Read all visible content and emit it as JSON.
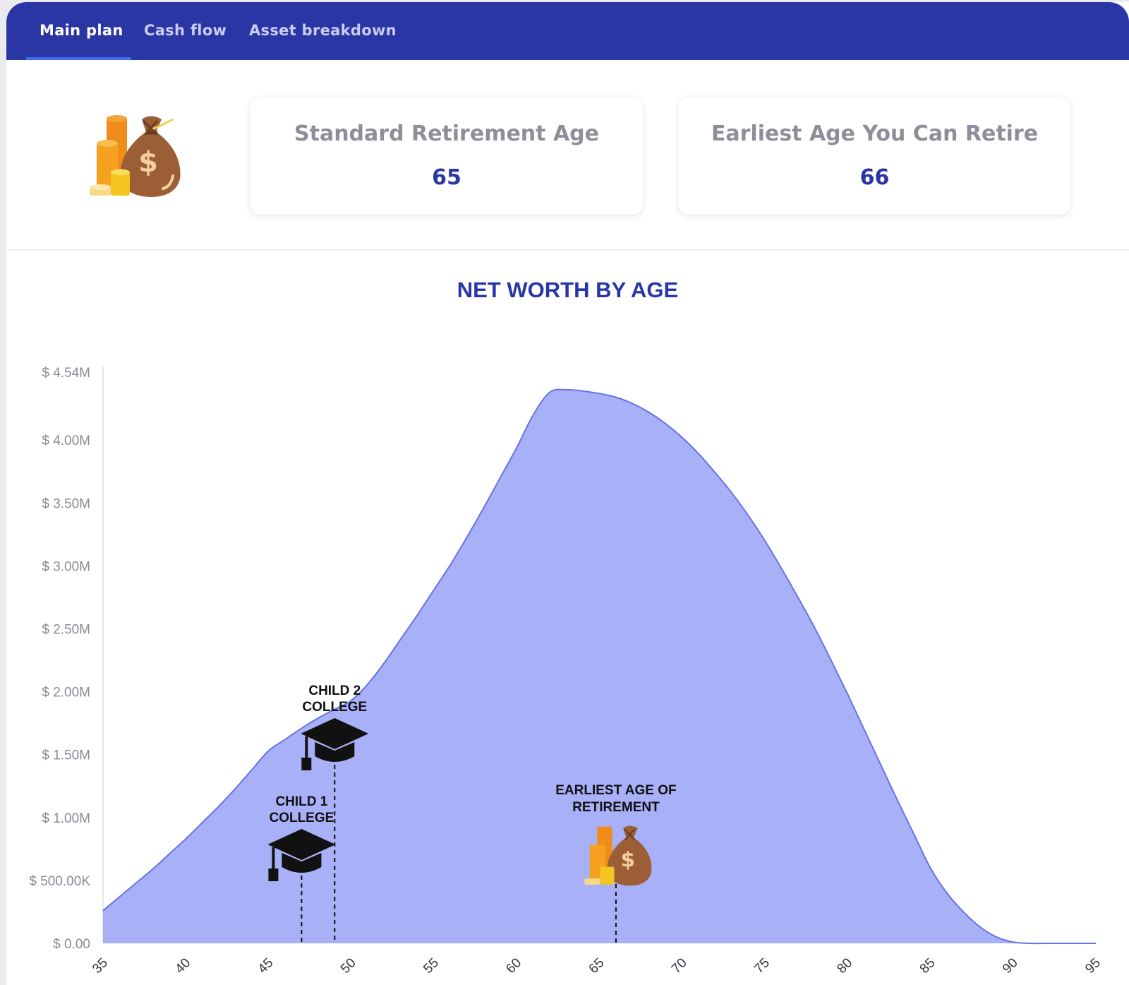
{
  "tabs": [
    {
      "label": "Main plan",
      "active": true
    },
    {
      "label": "Cash flow",
      "active": false
    },
    {
      "label": "Asset breakdown",
      "active": false
    }
  ],
  "cards": [
    {
      "label": "Standard Retirement Age",
      "value": "65"
    },
    {
      "label": "Earliest Age You Can Retire",
      "value": "66"
    }
  ],
  "colors": {
    "nav_bg": "#2a36a3",
    "accent_underline": "#3d6df0",
    "card_value": "#2a36a3",
    "area_fill": "#a8b0f7",
    "area_line": "#6873e6"
  },
  "chart_data": {
    "type": "area",
    "title": "NET WORTH BY AGE",
    "xlabel": "",
    "ylabel": "",
    "xlim": [
      35,
      95
    ],
    "ylim": [
      0,
      4540000
    ],
    "x_ticks": [
      "35",
      "40",
      "45",
      "50",
      "55",
      "60",
      "65",
      "70",
      "75",
      "80",
      "85",
      "90",
      "95"
    ],
    "y_ticks": [
      {
        "value": 0,
        "label": "$ 0.00"
      },
      {
        "value": 500000,
        "label": "$ 500.00K"
      },
      {
        "value": 1000000,
        "label": "$ 1.00M"
      },
      {
        "value": 1500000,
        "label": "$ 1.50M"
      },
      {
        "value": 2000000,
        "label": "$ 2.00M"
      },
      {
        "value": 2500000,
        "label": "$ 2.50M"
      },
      {
        "value": 3000000,
        "label": "$ 3.00M"
      },
      {
        "value": 3500000,
        "label": "$ 3.50M"
      },
      {
        "value": 4000000,
        "label": "$ 4.00M"
      },
      {
        "value": 4540000,
        "label": "$ 4.54M"
      }
    ],
    "grid": false,
    "series": [
      {
        "x": [
          35,
          36,
          37,
          38,
          39,
          40,
          41,
          42,
          43,
          44,
          45,
          46,
          47,
          48,
          49,
          50,
          51,
          52,
          53,
          54,
          55,
          56,
          57,
          58,
          59,
          60,
          61,
          62,
          63,
          64,
          64.5,
          65,
          66,
          67,
          68,
          69,
          70,
          71,
          72,
          73,
          74,
          75,
          76,
          77,
          78,
          79,
          80,
          81,
          82,
          83,
          84,
          85,
          86,
          87,
          88,
          89,
          90,
          91,
          92,
          93,
          93.5,
          94,
          95
        ],
        "values": [
          260000,
          370000,
          480000,
          590000,
          710000,
          830000,
          960000,
          1090000,
          1230000,
          1380000,
          1530000,
          1620000,
          1710000,
          1790000,
          1860000,
          1930000,
          2060000,
          2230000,
          2420000,
          2610000,
          2810000,
          3010000,
          3230000,
          3460000,
          3700000,
          3940000,
          4200000,
          4380000,
          4400000,
          4390000,
          4380000,
          4370000,
          4340000,
          4290000,
          4220000,
          4130000,
          4020000,
          3890000,
          3740000,
          3580000,
          3400000,
          3200000,
          2980000,
          2750000,
          2510000,
          2250000,
          1980000,
          1700000,
          1420000,
          1140000,
          870000,
          600000,
          400000,
          250000,
          130000,
          50000,
          10000,
          0,
          0,
          0,
          0,
          0,
          0
        ]
      }
    ],
    "annotations": [
      {
        "label_lines": [
          "CHILD  2",
          "COLLEGE"
        ],
        "x": 49,
        "icon": "graduation-cap-icon"
      },
      {
        "label_lines": [
          "CHILD  1",
          "COLLEGE"
        ],
        "x": 47,
        "icon": "graduation-cap-icon"
      },
      {
        "label_lines": [
          "EARLIEST AGE OF",
          "RETIREMENT"
        ],
        "x": 66,
        "icon": "money-bag-icon"
      }
    ]
  }
}
